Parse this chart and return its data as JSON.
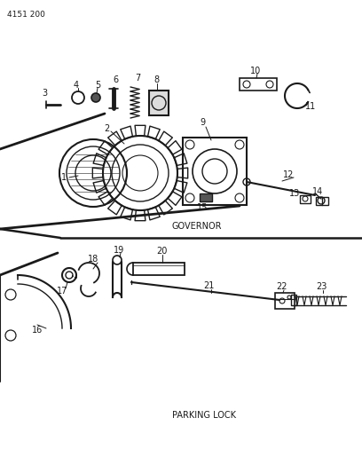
{
  "title": "4151 200",
  "governor_label": "GOVERNOR",
  "parking_label": "PARKING LOCK",
  "bg_color": "#ffffff",
  "lc": "#1a1a1a",
  "fig_width": 4.08,
  "fig_height": 5.33,
  "dpi": 100
}
